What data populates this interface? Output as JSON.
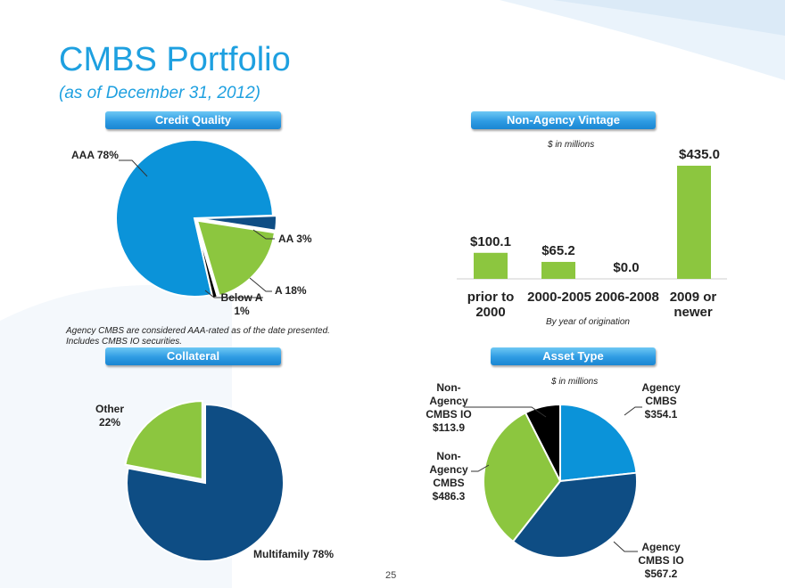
{
  "page": {
    "title": "CMBS Portfolio",
    "subtitle": "(as of December 31, 2012)",
    "page_number": "25"
  },
  "sections": {
    "credit_quality": "Credit Quality",
    "non_agency_vintage": "Non-Agency Vintage",
    "collateral": "Collateral",
    "asset_type": "Asset Type"
  },
  "notes": {
    "credit_line1": "Agency CMBS are considered AAA-rated  as of the date presented.",
    "credit_line2": "Includes CMBS IO securities.",
    "vintage_unit": "$ in millions",
    "vintage_xlabel": "By year of origination",
    "asset_unit": "$ in millions"
  },
  "colors": {
    "light_blue": "#0b93d9",
    "dark_blue": "#0e4d84",
    "green": "#8cc63f",
    "black": "#000000"
  },
  "chart_data": [
    {
      "type": "pie",
      "title": "Credit Quality",
      "slices": [
        {
          "label": "AAA 78%",
          "value": 78,
          "color": "#0b93d9"
        },
        {
          "label": "AA 3%",
          "value": 3,
          "color": "#0e4d84"
        },
        {
          "label": "A 18%",
          "value": 18,
          "color": "#8cc63f"
        },
        {
          "label": "Below A 1%",
          "value": 1,
          "color": "#000000"
        }
      ]
    },
    {
      "type": "bar",
      "title": "Non-Agency Vintage",
      "ylabel": "$ in millions",
      "xlabel": "By year of origination",
      "categories": [
        "prior to 2000",
        "2000-2005",
        "2006-2008",
        "2009 or newer"
      ],
      "values": [
        100.1,
        65.2,
        0.0,
        435.0
      ],
      "data_labels": [
        "$100.1",
        "$65.2",
        "$0.0",
        "$435.0"
      ],
      "color": "#8cc63f",
      "ylim": [
        0,
        435
      ]
    },
    {
      "type": "pie",
      "title": "Collateral",
      "slices": [
        {
          "label": "Multifamily 78%",
          "value": 78,
          "color": "#0e4d84"
        },
        {
          "label": "Other 22%",
          "value": 22,
          "color": "#8cc63f"
        }
      ]
    },
    {
      "type": "pie",
      "title": "Asset Type",
      "ylabel": "$ in millions",
      "slices": [
        {
          "label": "Agency CMBS $354.1",
          "value": 354.1,
          "color": "#0b93d9"
        },
        {
          "label": "Agency CMBS IO $567.2",
          "value": 567.2,
          "color": "#0e4d84"
        },
        {
          "label": "Non-Agency CMBS $486.3",
          "value": 486.3,
          "color": "#8cc63f"
        },
        {
          "label": "Non-Agency CMBS IO $113.9",
          "value": 113.9,
          "color": "#000000"
        }
      ]
    }
  ],
  "labels": {
    "cq_aaa": "AAA 78%",
    "cq_aa": "AA 3%",
    "cq_a": "A 18%",
    "cq_below_1": "Below A",
    "cq_below_2": "1%",
    "col_other_1": "Other",
    "col_other_2": "22%",
    "col_multi": "Multifamily 78%",
    "at_nonagency_io": [
      "Non-",
      "Agency",
      "CMBS IO",
      "$113.9"
    ],
    "at_nonagency": [
      "Non-",
      "Agency",
      "CMBS",
      "$486.3"
    ],
    "at_agency": [
      "Agency",
      "CMBS",
      "$354.1"
    ],
    "at_agency_io": [
      "Agency",
      "CMBS IO",
      "$567.2"
    ],
    "vint_cat_1a": "prior to",
    "vint_cat_1b": "2000",
    "vint_cat_2": "2000-2005",
    "vint_cat_3": "2006-2008",
    "vint_cat_4a": "2009 or",
    "vint_cat_4b": "newer"
  }
}
